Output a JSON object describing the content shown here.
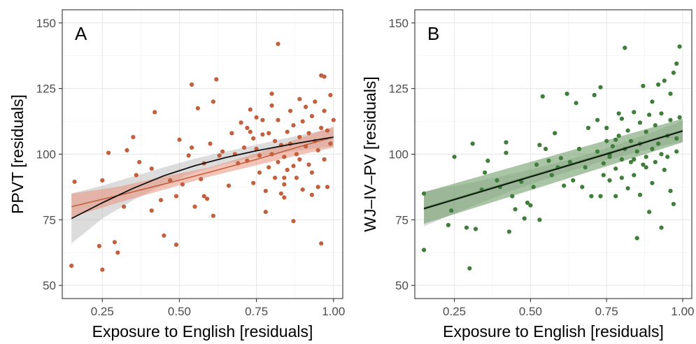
{
  "chart_data": [
    {
      "type": "scatter",
      "panel_label": "A",
      "xlabel": "Exposure to English [residuals]",
      "ylabel": "PPVT [residuals]",
      "xlim": [
        0.12,
        1.03
      ],
      "ylim": [
        45,
        155
      ],
      "x_ticks": [
        0.25,
        0.5,
        0.75,
        1.0
      ],
      "x_tick_labels": [
        "0.25",
        "0.50",
        "0.75",
        "1.00"
      ],
      "y_ticks": [
        50,
        75,
        100,
        125,
        150
      ],
      "y_tick_labels": [
        "50",
        "75",
        "100",
        "125",
        "150"
      ],
      "grid": true,
      "point_color": "#c2603d",
      "points": [
        [
          0.15,
          57.5
        ],
        [
          0.16,
          89.5
        ],
        [
          0.24,
          65
        ],
        [
          0.25,
          56
        ],
        [
          0.25,
          90
        ],
        [
          0.27,
          100.5
        ],
        [
          0.29,
          66.5
        ],
        [
          0.3,
          62.5
        ],
        [
          0.32,
          80
        ],
        [
          0.33,
          101.5
        ],
        [
          0.35,
          106.5
        ],
        [
          0.36,
          92
        ],
        [
          0.37,
          97
        ],
        [
          0.41,
          94.5
        ],
        [
          0.41,
          78.5
        ],
        [
          0.42,
          116
        ],
        [
          0.44,
          82.5
        ],
        [
          0.45,
          69
        ],
        [
          0.47,
          90
        ],
        [
          0.49,
          84
        ],
        [
          0.49,
          65.5
        ],
        [
          0.5,
          105.5
        ],
        [
          0.51,
          88.5
        ],
        [
          0.53,
          99.5
        ],
        [
          0.54,
          102.5
        ],
        [
          0.54,
          126.5
        ],
        [
          0.55,
          80
        ],
        [
          0.56,
          117.5
        ],
        [
          0.57,
          90.5
        ],
        [
          0.58,
          96.5
        ],
        [
          0.58,
          84
        ],
        [
          0.59,
          83
        ],
        [
          0.6,
          104
        ],
        [
          0.61,
          120
        ],
        [
          0.61,
          76.5
        ],
        [
          0.62,
          128.5
        ],
        [
          0.63,
          99.5
        ],
        [
          0.64,
          101
        ],
        [
          0.66,
          88
        ],
        [
          0.67,
          108
        ],
        [
          0.68,
          100
        ],
        [
          0.69,
          96.5
        ],
        [
          0.7,
          112
        ],
        [
          0.71,
          102.5
        ],
        [
          0.72,
          110
        ],
        [
          0.72,
          97.5
        ],
        [
          0.73,
          117
        ],
        [
          0.73,
          108.5
        ],
        [
          0.74,
          89
        ],
        [
          0.74,
          106
        ],
        [
          0.75,
          114
        ],
        [
          0.75,
          102
        ],
        [
          0.76,
          93
        ],
        [
          0.76,
          99.5
        ],
        [
          0.77,
          107.5
        ],
        [
          0.77,
          113
        ],
        [
          0.78,
          86
        ],
        [
          0.78,
          78
        ],
        [
          0.79,
          108
        ],
        [
          0.79,
          95
        ],
        [
          0.8,
          100
        ],
        [
          0.8,
          123
        ],
        [
          0.8,
          118.5
        ],
        [
          0.81,
          91
        ],
        [
          0.81,
          105
        ],
        [
          0.82,
          113
        ],
        [
          0.82,
          97
        ],
        [
          0.82,
          142
        ],
        [
          0.83,
          103.5
        ],
        [
          0.83,
          85
        ],
        [
          0.84,
          83.5
        ],
        [
          0.84,
          99
        ],
        [
          0.84,
          88.5
        ],
        [
          0.85,
          108.5
        ],
        [
          0.85,
          94
        ],
        [
          0.86,
          104
        ],
        [
          0.86,
          116.5
        ],
        [
          0.87,
          95.5
        ],
        [
          0.87,
          111
        ],
        [
          0.87,
          74.5
        ],
        [
          0.88,
          100
        ],
        [
          0.88,
          91
        ],
        [
          0.89,
          121
        ],
        [
          0.89,
          106.5
        ],
        [
          0.89,
          98
        ],
        [
          0.9,
          112.5
        ],
        [
          0.9,
          86.5
        ],
        [
          0.91,
          118
        ],
        [
          0.91,
          103
        ],
        [
          0.92,
          108
        ],
        [
          0.92,
          96
        ],
        [
          0.93,
          114.5
        ],
        [
          0.93,
          84.5
        ],
        [
          0.93,
          93
        ],
        [
          0.94,
          120
        ],
        [
          0.94,
          105
        ],
        [
          0.95,
          101.5
        ],
        [
          0.95,
          87.5
        ],
        [
          0.96,
          130
        ],
        [
          0.96,
          66
        ],
        [
          0.96,
          110
        ],
        [
          0.97,
          129.5
        ],
        [
          0.97,
          116.5
        ],
        [
          0.97,
          98
        ],
        [
          0.98,
          109
        ],
        [
          0.98,
          87.5
        ],
        [
          0.99,
          122.5
        ],
        [
          0.99,
          104
        ],
        [
          1.0,
          113
        ],
        [
          0.84,
          91
        ]
      ],
      "fits": [
        {
          "name": "",
          "color": "#c2603d",
          "band_color": "#e8917a",
          "band_opacity": 0.55,
          "x": [
            0.15,
            0.3,
            0.45,
            0.6,
            0.75,
            0.9,
            1.0
          ],
          "y": [
            80,
            84.2,
            88.6,
            93.2,
            98,
            103.2,
            106.5
          ],
          "lower": [
            76,
            81.5,
            86.5,
            91.5,
            95.8,
            100,
            102.5
          ],
          "upper": [
            85,
            87.5,
            91.5,
            95,
            100.3,
            106.5,
            110.5
          ]
        },
        {
          "name": "",
          "color": "#111111",
          "band_color": "#9a9a9a",
          "band_opacity": 0.35,
          "x": [
            0.15,
            0.25,
            0.35,
            0.45,
            0.55,
            0.65,
            0.75,
            0.85,
            0.95,
            1.0
          ],
          "y": [
            75.5,
            81.5,
            87,
            91.8,
            95.6,
            98.7,
            101.3,
            103.5,
            105.5,
            106.5
          ],
          "lower": [
            66,
            75.5,
            82.5,
            88.5,
            93,
            96.3,
            99,
            100.8,
            102.3,
            103
          ],
          "upper": [
            85,
            88,
            91.5,
            95,
            98.3,
            101,
            103.6,
            106.2,
            108.7,
            110
          ]
        }
      ]
    },
    {
      "type": "scatter",
      "panel_label": "B",
      "xlabel": "Exposure to English [residuals]",
      "ylabel": "WJ–IV–PV [residuals]",
      "xlim": [
        0.12,
        1.03
      ],
      "ylim": [
        45,
        155
      ],
      "x_ticks": [
        0.25,
        0.5,
        0.75,
        1.0
      ],
      "x_tick_labels": [
        "0.25",
        "0.50",
        "0.75",
        "1.00"
      ],
      "y_ticks": [
        50,
        75,
        100,
        125,
        150
      ],
      "y_tick_labels": [
        "50",
        "75",
        "100",
        "125",
        "150"
      ],
      "grid": true,
      "point_color": "#3e7d3a",
      "points": [
        [
          0.15,
          85
        ],
        [
          0.15,
          63.5
        ],
        [
          0.23,
          73
        ],
        [
          0.24,
          78.5
        ],
        [
          0.25,
          99
        ],
        [
          0.29,
          72
        ],
        [
          0.3,
          56.5
        ],
        [
          0.31,
          104
        ],
        [
          0.32,
          71.5
        ],
        [
          0.34,
          86.5
        ],
        [
          0.35,
          93
        ],
        [
          0.36,
          97.5
        ],
        [
          0.39,
          90
        ],
        [
          0.4,
          87.5
        ],
        [
          0.42,
          104.5
        ],
        [
          0.42,
          100.5
        ],
        [
          0.43,
          70.5
        ],
        [
          0.44,
          84
        ],
        [
          0.45,
          79
        ],
        [
          0.47,
          89.5
        ],
        [
          0.48,
          75.5
        ],
        [
          0.49,
          81.5
        ],
        [
          0.5,
          80.5
        ],
        [
          0.51,
          87.5
        ],
        [
          0.52,
          96
        ],
        [
          0.53,
          103.5
        ],
        [
          0.53,
          75
        ],
        [
          0.54,
          122
        ],
        [
          0.55,
          102
        ],
        [
          0.56,
          97.5
        ],
        [
          0.57,
          92
        ],
        [
          0.58,
          108
        ],
        [
          0.59,
          95
        ],
        [
          0.6,
          98.5
        ],
        [
          0.61,
          88
        ],
        [
          0.62,
          123
        ],
        [
          0.63,
          97
        ],
        [
          0.64,
          90
        ],
        [
          0.65,
          119.5
        ],
        [
          0.66,
          102
        ],
        [
          0.67,
          87.5
        ],
        [
          0.68,
          95
        ],
        [
          0.69,
          110
        ],
        [
          0.7,
          84
        ],
        [
          0.71,
          122.5
        ],
        [
          0.72,
          101
        ],
        [
          0.72,
          113
        ],
        [
          0.73,
          84
        ],
        [
          0.73,
          125.5
        ],
        [
          0.74,
          96.5
        ],
        [
          0.75,
          105
        ],
        [
          0.75,
          110
        ],
        [
          0.76,
          90
        ],
        [
          0.76,
          99
        ],
        [
          0.77,
          103
        ],
        [
          0.78,
          94.5
        ],
        [
          0.78,
          84
        ],
        [
          0.79,
          115.5
        ],
        [
          0.79,
          107
        ],
        [
          0.8,
          98
        ],
        [
          0.8,
          113.5
        ],
        [
          0.81,
          102
        ],
        [
          0.81,
          140.5
        ],
        [
          0.82,
          87
        ],
        [
          0.82,
          109
        ],
        [
          0.83,
          105
        ],
        [
          0.83,
          97
        ],
        [
          0.84,
          116
        ],
        [
          0.84,
          92
        ],
        [
          0.85,
          101
        ],
        [
          0.85,
          68
        ],
        [
          0.86,
          112
        ],
        [
          0.86,
          104
        ],
        [
          0.87,
          126
        ],
        [
          0.87,
          96
        ],
        [
          0.88,
          108.5
        ],
        [
          0.88,
          99
        ],
        [
          0.89,
          78
        ],
        [
          0.89,
          115
        ],
        [
          0.9,
          102
        ],
        [
          0.9,
          89
        ],
        [
          0.91,
          111
        ],
        [
          0.91,
          97
        ],
        [
          0.92,
          126.5
        ],
        [
          0.92,
          104
        ],
        [
          0.93,
          72
        ],
        [
          0.93,
          115.5
        ],
        [
          0.93,
          100
        ],
        [
          0.94,
          94
        ],
        [
          0.94,
          128
        ],
        [
          0.95,
          107
        ],
        [
          0.95,
          99
        ],
        [
          0.96,
          123
        ],
        [
          0.96,
          86
        ],
        [
          0.96,
          113
        ],
        [
          0.97,
          81
        ],
        [
          0.97,
          131
        ],
        [
          0.98,
          134.5
        ],
        [
          0.98,
          101
        ],
        [
          0.99,
          141
        ],
        [
          0.99,
          114
        ],
        [
          0.98,
          106
        ],
        [
          0.9,
          120
        ],
        [
          0.88,
          95
        ],
        [
          0.86,
          84.5
        ],
        [
          0.84,
          98
        ],
        [
          0.8,
          91
        ],
        [
          0.78,
          105.5
        ],
        [
          0.76,
          100
        ],
        [
          0.74,
          92
        ]
      ],
      "fits": [
        {
          "name": "",
          "color": "#3e7d3a",
          "band_color": "#6f9f6a",
          "band_opacity": 0.6,
          "x": [
            0.15,
            1.0
          ],
          "y": [
            79.5,
            109
          ],
          "lower": [
            73.5,
            104.5
          ],
          "upper": [
            85.5,
            113.5
          ]
        },
        {
          "name": "",
          "color": "#111111",
          "band_color": "#9a9a9a",
          "band_opacity": 0.35,
          "x": [
            0.15,
            0.3,
            0.45,
            0.6,
            0.75,
            0.9,
            1.0
          ],
          "y": [
            79.2,
            84.4,
            89.6,
            94.8,
            100,
            105.3,
            108.8
          ],
          "lower": [
            72.5,
            79.8,
            86.5,
            92.5,
            97.8,
            102.3,
            104.8
          ],
          "upper": [
            85.8,
            89,
            92.7,
            97.1,
            102.2,
            108.3,
            112.8
          ]
        }
      ]
    }
  ]
}
